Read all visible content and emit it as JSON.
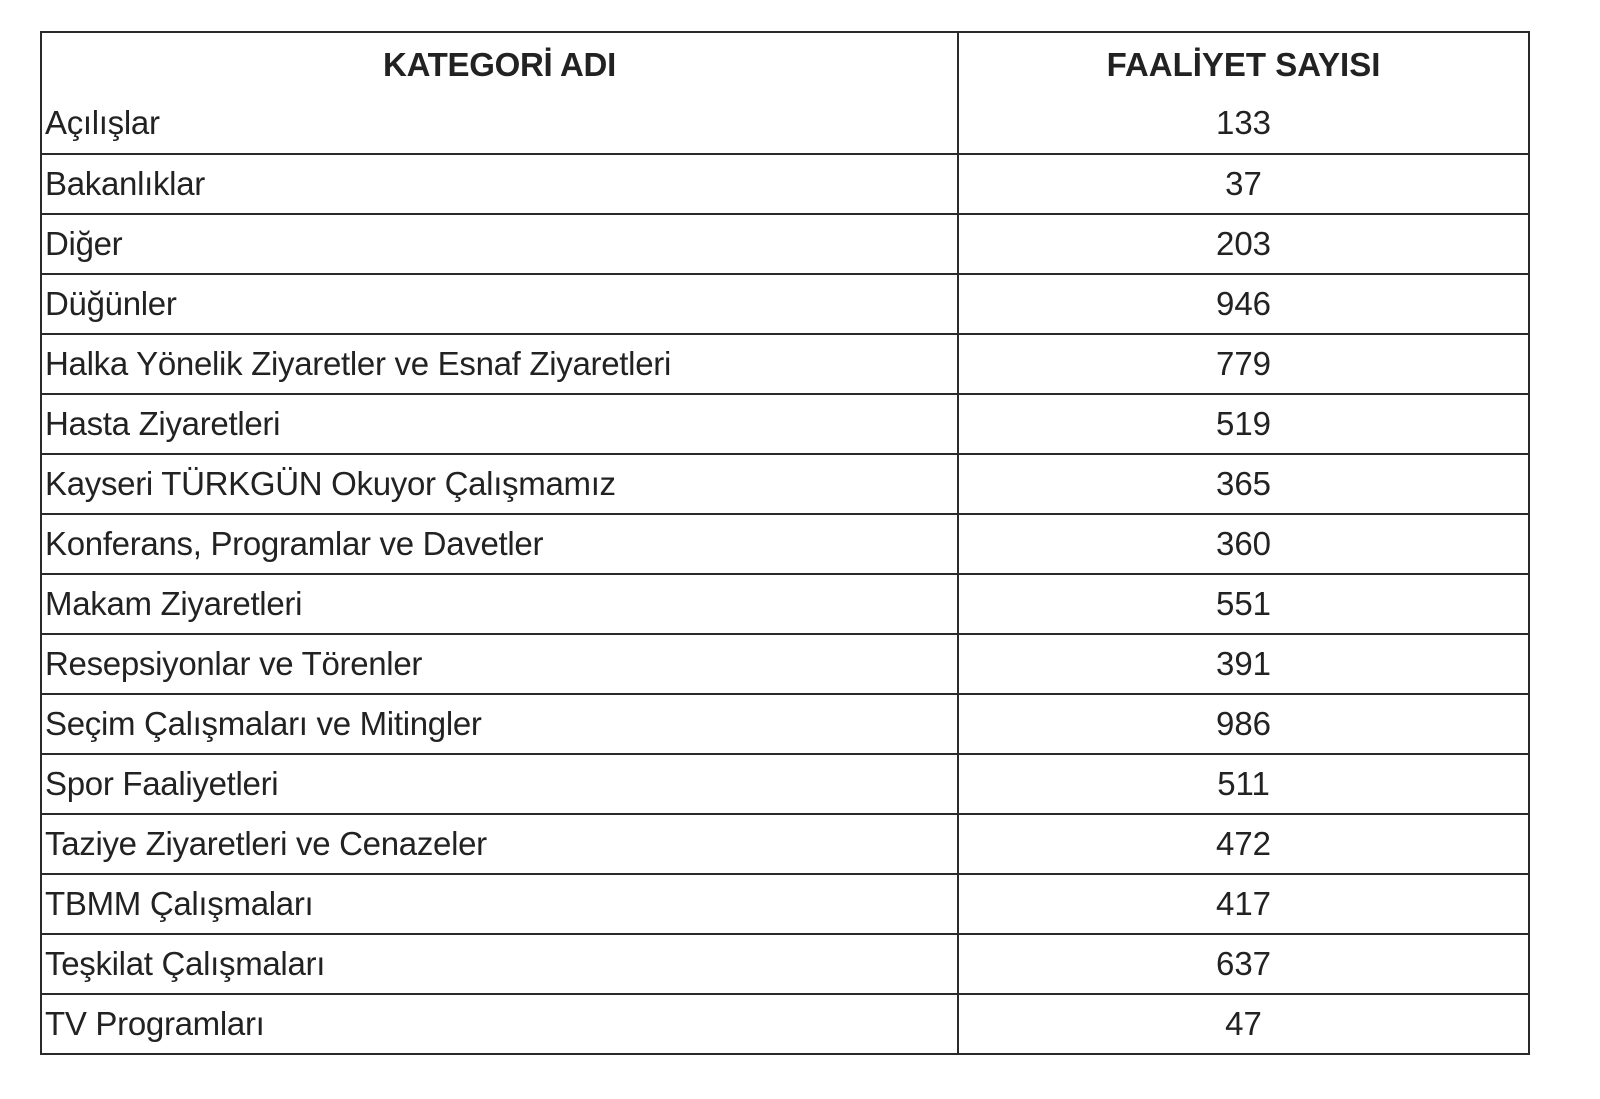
{
  "table": {
    "headers": [
      "KATEGORİ ADI",
      "FAALİYET SAYISI"
    ],
    "rows": [
      {
        "category": "Açılışlar",
        "count": "133"
      },
      {
        "category": "Bakanlıklar",
        "count": "37"
      },
      {
        "category": "Diğer",
        "count": "203"
      },
      {
        "category": "Düğünler",
        "count": "946"
      },
      {
        "category": "Halka Yönelik Ziyaretler ve Esnaf Ziyaretleri",
        "count": "779"
      },
      {
        "category": "Hasta Ziyaretleri",
        "count": "519"
      },
      {
        "category": "Kayseri TÜRKGÜN Okuyor Çalışmamız",
        "count": "365"
      },
      {
        "category": "Konferans, Programlar ve Davetler",
        "count": "360"
      },
      {
        "category": "Makam Ziyaretleri",
        "count": "551"
      },
      {
        "category": "Resepsiyonlar ve Törenler",
        "count": "391"
      },
      {
        "category": "Seçim Çalışmaları ve Mitingler",
        "count": "986"
      },
      {
        "category": "Spor Faaliyetleri",
        "count": "511"
      },
      {
        "category": "Taziye Ziyaretleri ve Cenazeler",
        "count": "472"
      },
      {
        "category": "TBMM Çalışmaları",
        "count": "417"
      },
      {
        "category": "Teşkilat Çalışmaları",
        "count": "637"
      },
      {
        "category": "TV Programları",
        "count": "47"
      }
    ]
  }
}
